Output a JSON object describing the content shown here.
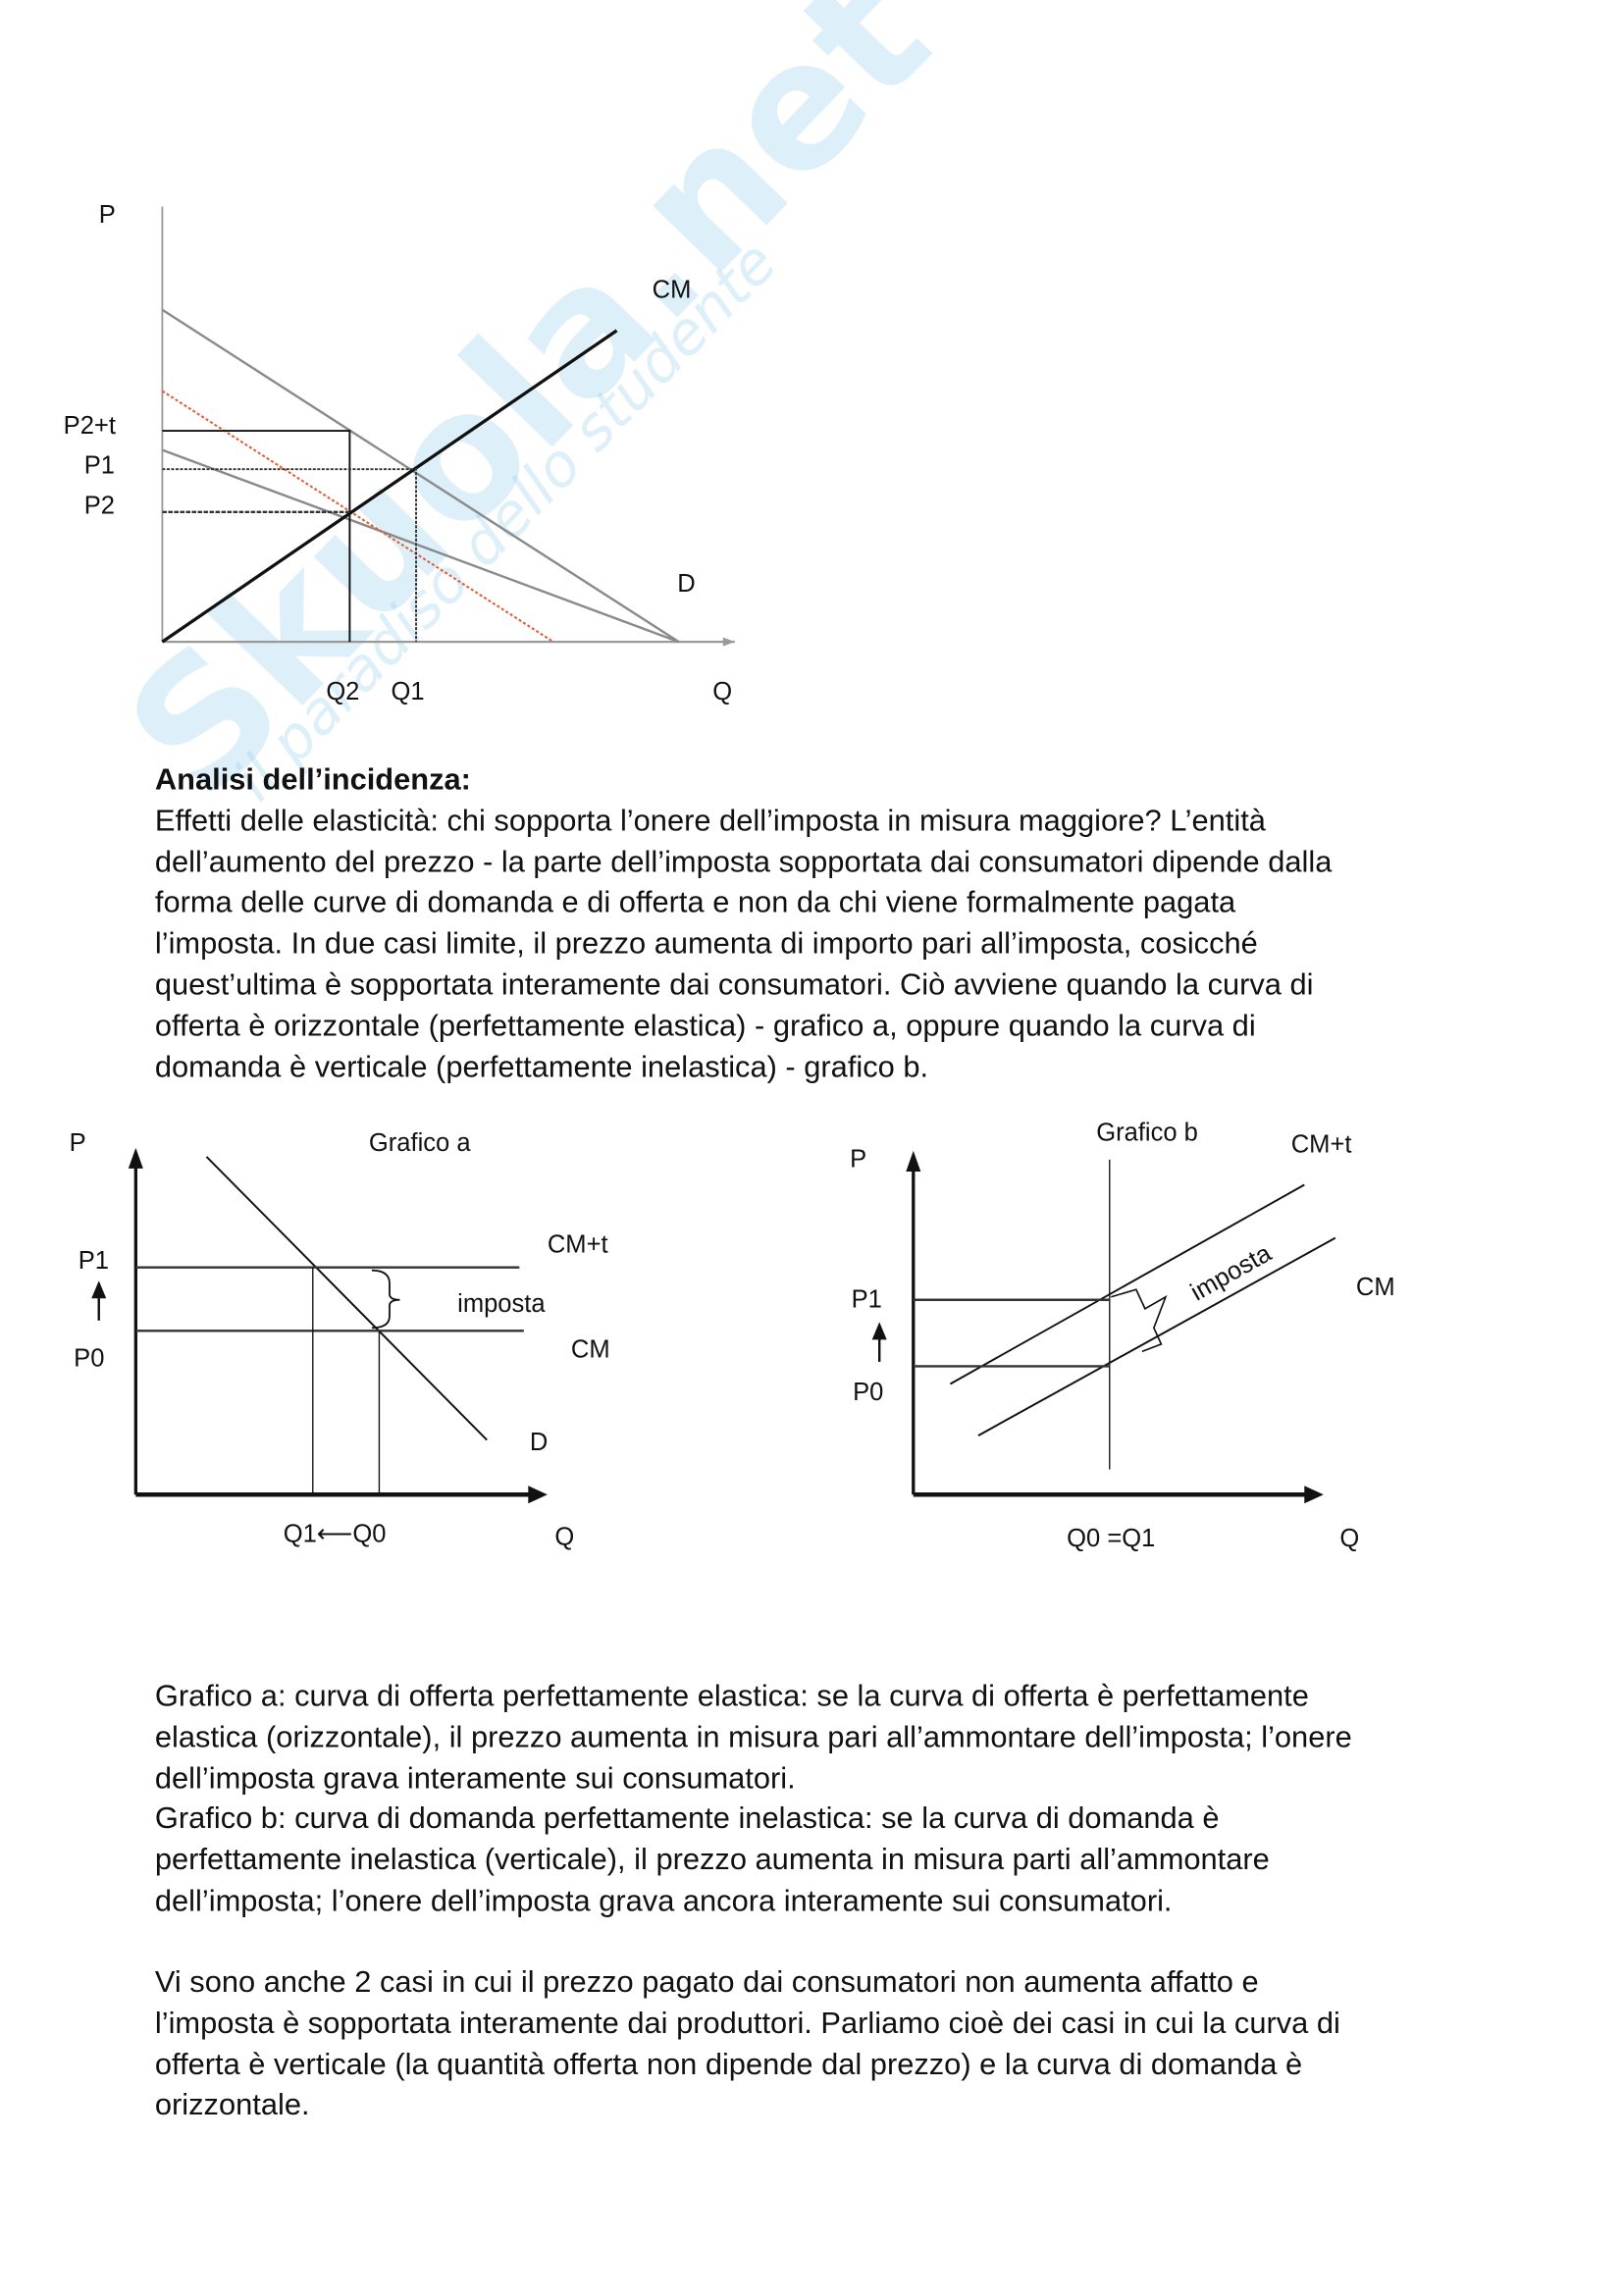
{
  "watermark": {
    "brand": "Skuola.net",
    "tagline": "il paradiso dello studente",
    "color": "#9fd0ec",
    "accent": "#f7f08a"
  },
  "chart_top": {
    "labels": {
      "p": "P",
      "cm": "CM",
      "p2t": "P2+t",
      "p1": "P1",
      "p2": "P2",
      "d": "D",
      "q2": "Q2",
      "q1": "Q1",
      "q": "Q"
    },
    "tax_curve_color": "#e0603a"
  },
  "heading": "Analisi dell’incidenza:",
  "para1": [
    "Effetti delle elasticità: chi sopporta l’onere dell’imposta in misura maggiore? L’entità",
    "dell’aumento del prezzo - la parte dell’imposta sopportata dai consumatori dipende dalla",
    "forma delle curve di domanda e di offerta e non da chi viene formalmente pagata",
    "l’imposta. In due casi limite, il prezzo aumenta di importo pari all’imposta, cosicché",
    "quest’ultima è sopportata interamente dai consumatori. Ciò avviene quando la curva di",
    "offerta è orizzontale (perfettamente elastica) - grafico a, oppure quando la curva di",
    "domanda è verticale (perfettamente inelastica) - grafico b."
  ],
  "chart_a": {
    "title": "Grafico a",
    "labels": {
      "p": "P",
      "cmt": "CM+t",
      "imposta": "imposta",
      "cm": "CM",
      "d": "D",
      "p1": "P1",
      "p0": "P0",
      "q1q0": "Q1⟵Q0",
      "q": "Q"
    }
  },
  "chart_b": {
    "title": "Grafico b",
    "labels": {
      "p": "P",
      "cmt": "CM+t",
      "imposta": "imposta",
      "cm": "CM",
      "p1": "P1",
      "p0": "P0",
      "q0q1": "Q0 =Q1",
      "q": "Q"
    }
  },
  "para2": [
    "Grafico a: curva di offerta perfettamente elastica: se la curva di offerta è perfettamente",
    "elastica (orizzontale), il prezzo aumenta in misura pari all’ammontare dell’imposta; l’onere",
    "dell’imposta grava interamente sui consumatori.",
    "Grafico b: curva di domanda perfettamente inelastica: se la curva di domanda è",
    "perfettamente inelastica (verticale), il prezzo aumenta in misura parti all’ammontare",
    "dell’imposta; l’onere dell’imposta grava ancora interamente sui consumatori."
  ],
  "para3": [
    "Vi sono anche 2 casi in cui il prezzo pagato dai consumatori non aumenta affatto e",
    "l’imposta è sopportata interamente dai produttori. Parliamo cioè dei casi in cui la curva di",
    "offerta è verticale (la quantità offerta non dipende dal prezzo) e la curva di domanda è",
    "orizzontale."
  ]
}
